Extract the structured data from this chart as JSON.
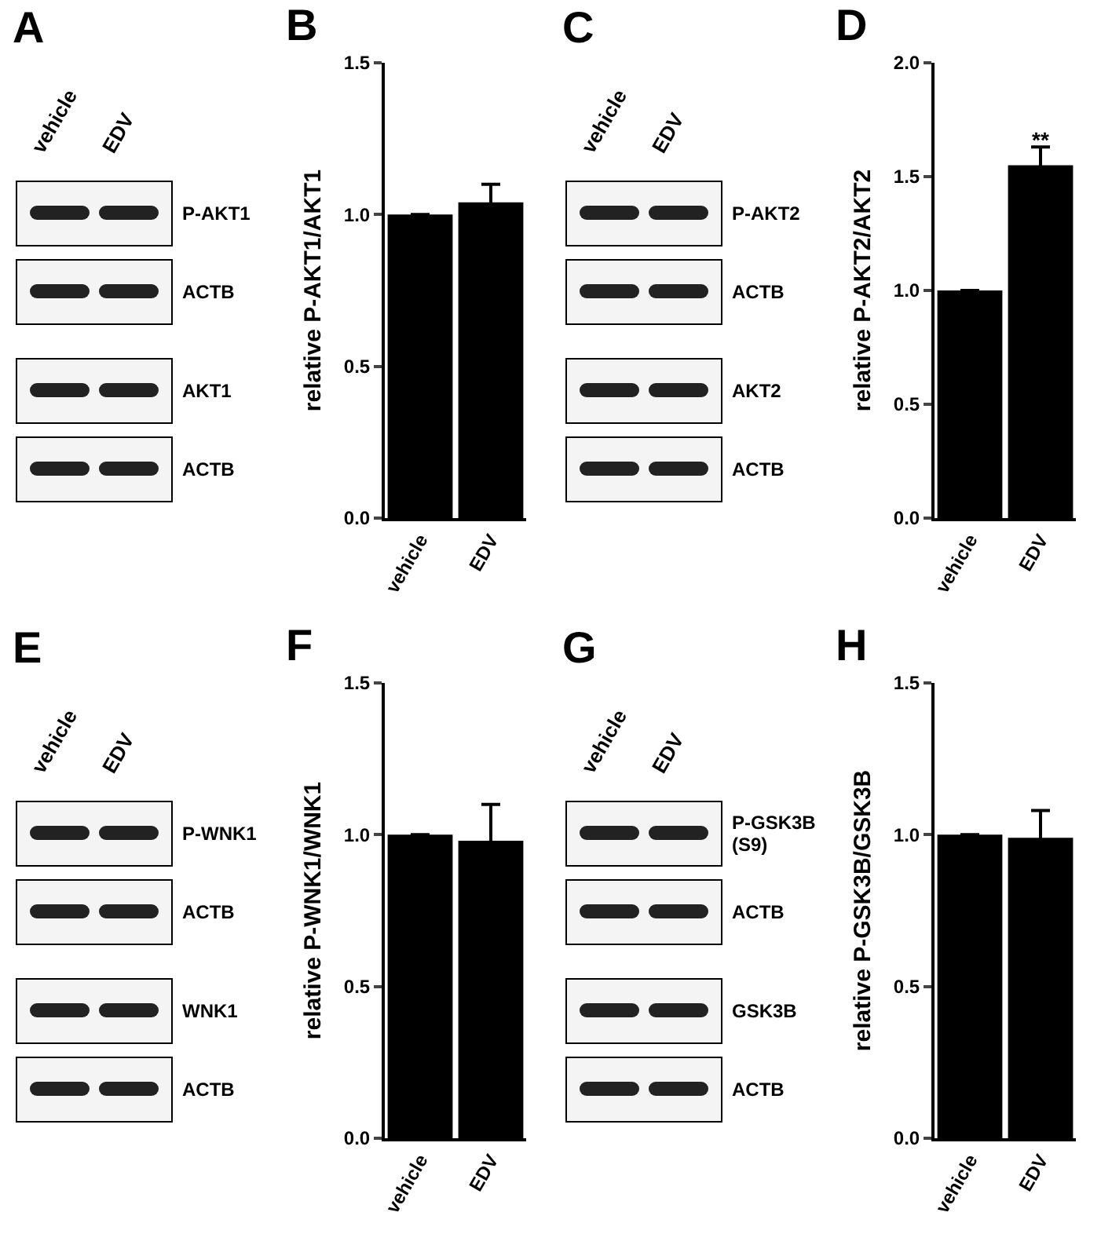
{
  "chart_data": [
    {
      "type": "other",
      "title": "A",
      "annotations": [
        "vehicle",
        "EDV",
        "P-AKT1",
        "ACTB",
        "AKT1",
        "ACTB"
      ]
    },
    {
      "type": "bar",
      "title": "B",
      "ylabel": "relative P-AKT1/AKT1",
      "categories": [
        "vehicle",
        "EDV"
      ],
      "values": [
        1.0,
        1.04
      ],
      "errors": [
        null,
        0.06
      ],
      "color": "#000000",
      "ylim": [
        0,
        1.5
      ],
      "yticks": [
        {
          "value": 0,
          "label": "0.0"
        },
        {
          "value": 0.5,
          "label": "0.5"
        },
        {
          "value": 1,
          "label": "1.0"
        },
        {
          "value": 1.5,
          "label": "1.5"
        }
      ]
    },
    {
      "type": "other",
      "title": "C",
      "annotations": [
        "vehicle",
        "EDV",
        "P-AKT2",
        "ACTB",
        "AKT2",
        "ACTB"
      ]
    },
    {
      "type": "bar",
      "title": "D",
      "ylabel": "relative P-AKT2/AKT2",
      "categories": [
        "vehicle",
        "EDV"
      ],
      "values": [
        1.0,
        1.55
      ],
      "errors": [
        null,
        0.08
      ],
      "color": "#000000",
      "ylim": [
        0,
        2
      ],
      "yticks": [
        {
          "value": 0,
          "label": "0.0"
        },
        {
          "value": 0.5,
          "label": "0.5"
        },
        {
          "value": 1,
          "label": "1.0"
        },
        {
          "value": 1.5,
          "label": "1.5"
        },
        {
          "value": 2,
          "label": "2.0"
        }
      ],
      "annotations": [
        {
          "text": "**",
          "x": "EDV",
          "y": 1.66
        }
      ]
    },
    {
      "type": "other",
      "title": "E",
      "annotations": [
        "vehicle",
        "EDV",
        "P-WNK1",
        "ACTB",
        "WNK1",
        "ACTB"
      ]
    },
    {
      "type": "bar",
      "title": "F",
      "ylabel": "relative P-WNK1/WNK1",
      "categories": [
        "vehicle",
        "EDV"
      ],
      "values": [
        1.0,
        0.98
      ],
      "errors": [
        null,
        0.12
      ],
      "color": "#000000",
      "ylim": [
        0,
        1.5
      ],
      "yticks": [
        {
          "value": 0,
          "label": "0.0"
        },
        {
          "value": 0.5,
          "label": "0.5"
        },
        {
          "value": 1,
          "label": "1.0"
        },
        {
          "value": 1.5,
          "label": "1.5"
        }
      ]
    },
    {
      "type": "other",
      "title": "G",
      "annotations": [
        "vehicle",
        "EDV",
        "P-GSK3B (S9)",
        "ACTB",
        "GSK3B",
        "ACTB"
      ]
    },
    {
      "type": "bar",
      "title": "H",
      "ylabel": "relative P-GSK3B/GSK3B",
      "categories": [
        "vehicle",
        "EDV"
      ],
      "values": [
        1.0,
        0.99
      ],
      "errors": [
        null,
        0.09
      ],
      "color": "#000000",
      "ylim": [
        0,
        1.5
      ],
      "yticks": [
        {
          "value": 0,
          "label": "0.0"
        },
        {
          "value": 0.5,
          "label": "0.5"
        },
        {
          "value": 1,
          "label": "1.0"
        },
        {
          "value": 1.5,
          "label": "1.5"
        }
      ]
    }
  ]
}
